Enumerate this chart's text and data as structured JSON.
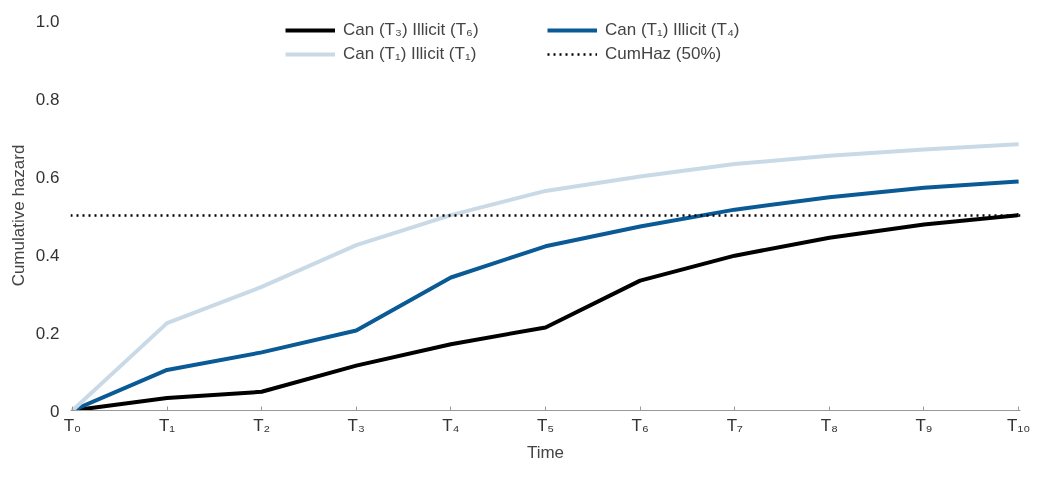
{
  "chart_data": {
    "type": "line",
    "xlabel": "Time",
    "ylabel": "Cumulative hazard",
    "categories": [
      "T₀",
      "T₁",
      "T₂",
      "T₃",
      "T₄",
      "T₅",
      "T₆",
      "T₇",
      "T₈",
      "T₉",
      "T₁₀"
    ],
    "series": [
      {
        "name": "Can (T₃) Illicit (T₆)",
        "color": "#000000",
        "values": [
          0,
          0.032,
          0.048,
          0.115,
          0.17,
          0.213,
          0.333,
          0.397,
          0.443,
          0.477,
          0.501
        ]
      },
      {
        "name": "Can (T₁) Illicit (T₄)",
        "color": "#0a5a96",
        "values": [
          0,
          0.104,
          0.149,
          0.205,
          0.341,
          0.421,
          0.472,
          0.515,
          0.547,
          0.571,
          0.587
        ]
      },
      {
        "name": "Can (T₁) Illicit (T₁)",
        "color": "#c9dae6",
        "values": [
          0,
          0.224,
          0.317,
          0.424,
          0.501,
          0.563,
          0.6,
          0.632,
          0.653,
          0.669,
          0.683
        ]
      }
    ],
    "ref_lines": [
      {
        "axis": "y",
        "value": 0.5,
        "label": "CumHaz (50%)",
        "color": "#000000",
        "line_style": "dotted"
      }
    ],
    "ylim": [
      0,
      1.0
    ],
    "yticks": [
      0,
      0.2,
      0.4,
      0.6,
      0.8,
      {
        "value": 1.0,
        "label": "1.0"
      }
    ],
    "grid": false,
    "legend": "top",
    "marker": "none",
    "line_style": "solid"
  }
}
